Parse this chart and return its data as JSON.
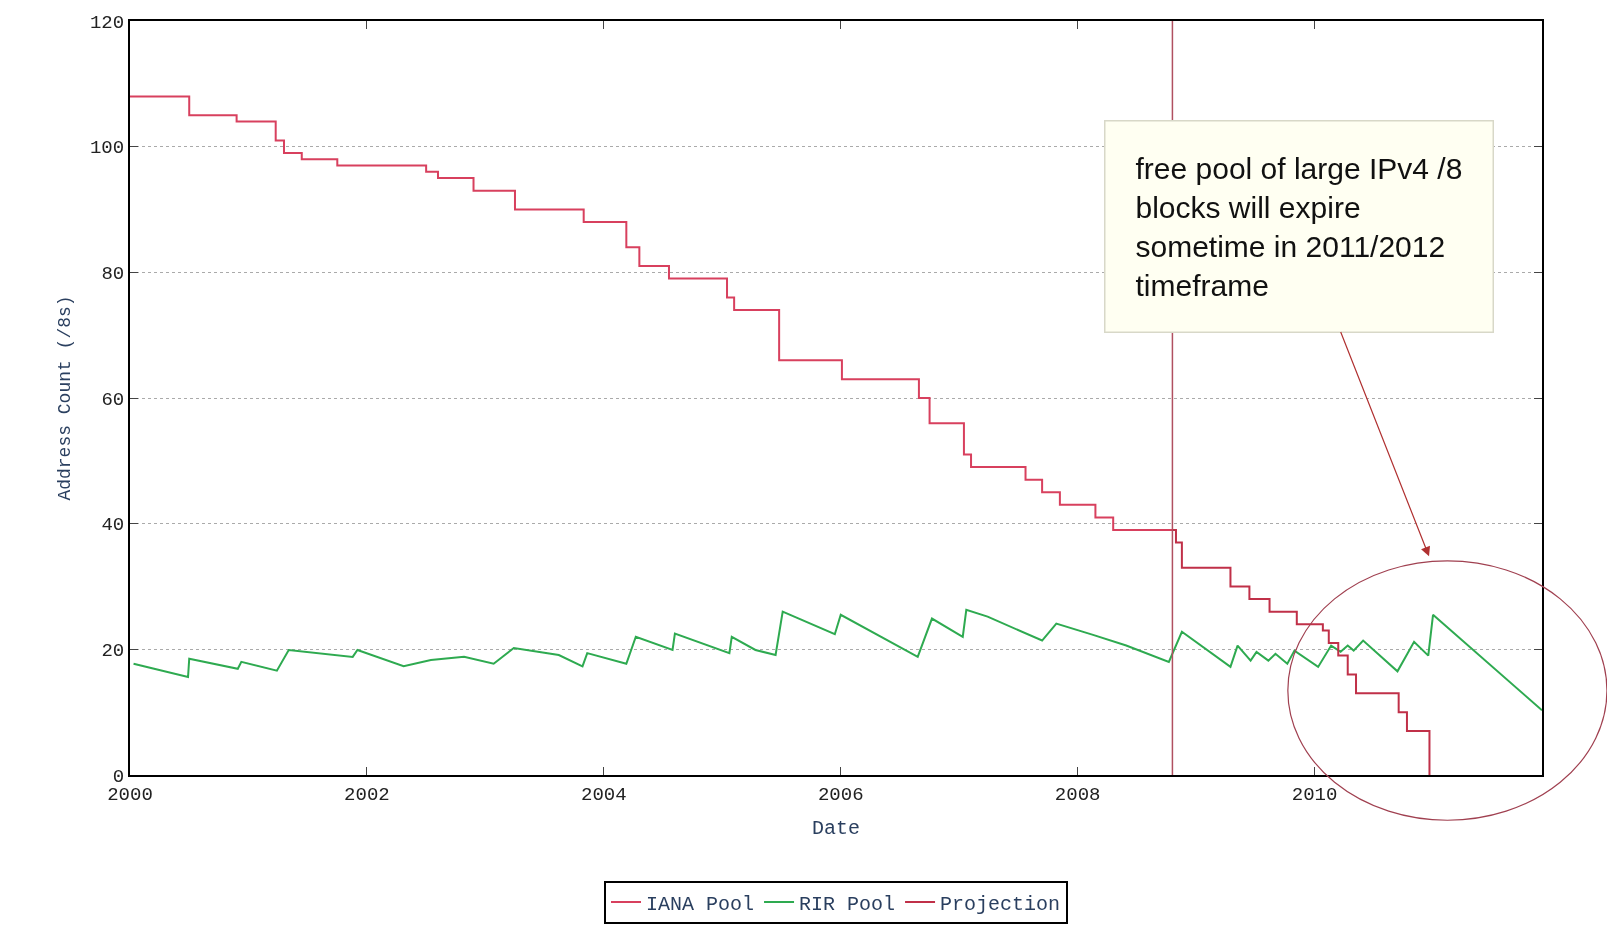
{
  "chart_data": {
    "type": "line",
    "xlabel": "Date",
    "ylabel": "Address Count (/8s)",
    "xlim": [
      2000,
      2011.92
    ],
    "xticks": [
      2000,
      2002,
      2004,
      2006,
      2008,
      2010
    ],
    "ylim": [
      0,
      120
    ],
    "yticks": [
      0,
      20,
      40,
      60,
      80,
      100,
      120
    ],
    "grid": "y",
    "legend": "bottom",
    "series": [
      {
        "name": "IANA Pool",
        "type": "step",
        "color": "#d8405e",
        "x": [
          2000,
          2000.5,
          2000.9,
          2001.23,
          2001.3,
          2001.45,
          2001.75,
          2002.5,
          2002.6,
          2002.9,
          2003.25,
          2003.83,
          2004.19,
          2004.3,
          2004.55,
          2005.04,
          2005.1,
          2005.48,
          2006.01,
          2006.66,
          2006.75,
          2007.04,
          2007.1,
          2007.56,
          2007.7,
          2007.85,
          2008.15,
          2008.3,
          2008.8
        ],
        "values": [
          108,
          105,
          104,
          101,
          99,
          98,
          97,
          96,
          95,
          93,
          90,
          88,
          84,
          81,
          79,
          76,
          74,
          66,
          63,
          60,
          56,
          51,
          49,
          47,
          45,
          43,
          41,
          39,
          39
        ]
      },
      {
        "name": "RIR Pool",
        "color": "#2eaa50",
        "x": [
          2000.03,
          2000.49,
          2000.5,
          2000.91,
          2000.94,
          2001.24,
          2001.34,
          2001.88,
          2001.92,
          2002.31,
          2002.54,
          2002.82,
          2003.07,
          2003.24,
          2003.62,
          2003.82,
          2003.86,
          2004.19,
          2004.27,
          2004.58,
          2004.6,
          2005.06,
          2005.08,
          2005.28,
          2005.45,
          2005.51,
          2005.95,
          2006.0,
          2006.65,
          2006.77,
          2007.03,
          2007.06,
          2007.24,
          2007.7,
          2007.82,
          2008.13,
          2008.41,
          2008.77,
          2008.88,
          2009.29,
          2009.35,
          2009.46,
          2009.51,
          2009.61,
          2009.67,
          2009.77,
          2009.83,
          2010.03,
          2010.14,
          2010.22,
          2010.28,
          2010.33,
          2010.41,
          2010.7,
          2010.84,
          2010.96,
          2011.0,
          2011.92
        ],
        "values": [
          17.7,
          15.6,
          18.5,
          16.9,
          18.0,
          16.6,
          19.9,
          18.8,
          19.9,
          17.3,
          18.3,
          18.8,
          17.7,
          20.2,
          19.1,
          17.3,
          19.4,
          17.7,
          22.0,
          19.9,
          22.5,
          19.4,
          22.0,
          19.9,
          19.1,
          26.0,
          22.4,
          25.5,
          18.8,
          24.9,
          22.0,
          26.3,
          25.2,
          21.4,
          24.1,
          22.3,
          20.6,
          18.0,
          22.8,
          17.2,
          20.6,
          18.2,
          19.6,
          18.2,
          19.3,
          17.7,
          19.8,
          17.2,
          20.6,
          19.6,
          20.6,
          19.8,
          21.4,
          16.5,
          21.2,
          19.0,
          25.5,
          10.3
        ]
      },
      {
        "name": "Projection",
        "type": "step",
        "color": "#c03048",
        "x": [
          2008.8,
          2008.83,
          2008.88,
          2009.29,
          2009.45,
          2009.62,
          2009.85,
          2010.07,
          2010.12,
          2010.2,
          2010.28,
          2010.35,
          2010.71,
          2010.78,
          2010.97
        ],
        "values": [
          39,
          37,
          33,
          30,
          28,
          26,
          24,
          23,
          21,
          19,
          16,
          13,
          10,
          7,
          0
        ]
      }
    ],
    "ref_lines": [
      {
        "axis": "x",
        "value": 2008.8,
        "color": "#b05060"
      }
    ],
    "annotations": [
      "free pool of large IPv4 /8\nblocks will expire\nsometime in 2011/2012\ntimeframe"
    ]
  }
}
